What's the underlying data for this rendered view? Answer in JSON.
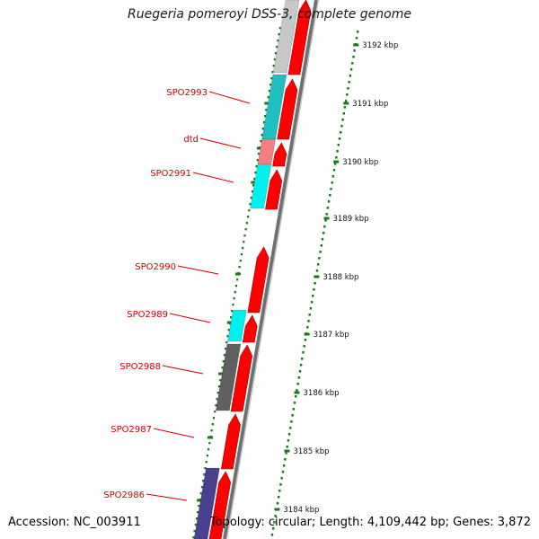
{
  "title": "Ruegeria pomeroyi DSS-3, complete genome",
  "footer": {
    "accession": "Accession: NC_003911",
    "topology": "Topology: circular; Length: 4,109,442 bp; Genes: 3,872"
  },
  "colors": {
    "forward_strand": "#ff0000",
    "genome_axis": "#888888",
    "tick": "#1a7a1a",
    "label": "#cc0000",
    "ruler_text": "#111111"
  },
  "ruler": [
    {
      "label": "3192 kbp"
    },
    {
      "label": "3191 kbp"
    },
    {
      "label": "3190 kbp"
    },
    {
      "label": "3189 kbp"
    },
    {
      "label": "3188 kbp"
    },
    {
      "label": "3187 kbp"
    },
    {
      "label": "3186 kbp"
    },
    {
      "label": "3185 kbp"
    },
    {
      "label": "3184 kbp"
    }
  ],
  "reverse_features": [
    {
      "color": "#c8c8c8"
    },
    {
      "color": "#20c0c0"
    },
    {
      "color": "#f08080"
    },
    {
      "color": "#00f0f0"
    },
    {
      "color": "#00f0f0"
    },
    {
      "color": "#606060"
    },
    {
      "color": "#4a4090"
    }
  ],
  "gene_labels": [
    {
      "text": "SPO2993"
    },
    {
      "text": "dtd"
    },
    {
      "text": "SPO2991"
    },
    {
      "text": "SPO2990"
    },
    {
      "text": "SPO2989"
    },
    {
      "text": "SPO2988"
    },
    {
      "text": "SPO2987"
    },
    {
      "text": "SPO2986"
    }
  ]
}
